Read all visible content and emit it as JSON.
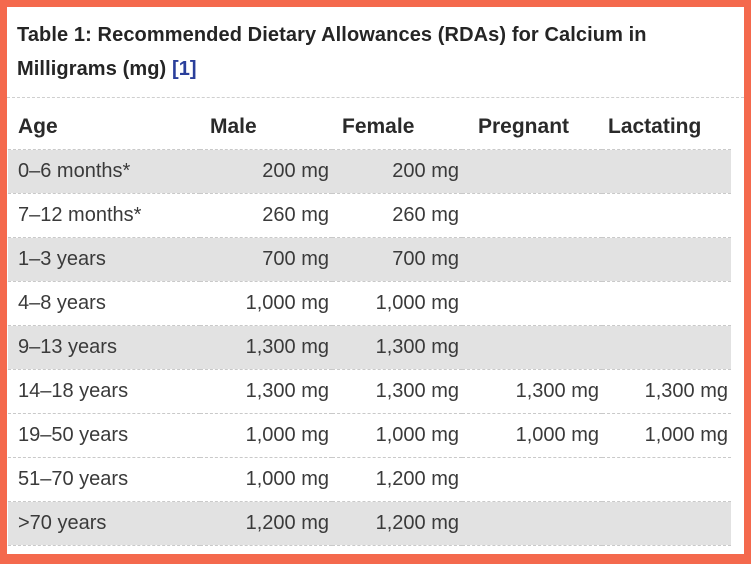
{
  "frame": {
    "border_color": "#f4694d",
    "background_color": "#ffffff"
  },
  "table": {
    "title_text": "Table 1: Recommended Dietary Allowances (RDAs) for Calcium in Milligrams (mg) ",
    "reference_label": "[1]",
    "columns": [
      "Age",
      "Male",
      "Female",
      "Pregnant",
      "Lactating"
    ],
    "rows": [
      {
        "age": "0–6 months*",
        "male": "200 mg",
        "female": "200 mg",
        "pregnant": "",
        "lactating": "",
        "shaded": true
      },
      {
        "age": "7–12 months*",
        "male": "260 mg",
        "female": "260 mg",
        "pregnant": "",
        "lactating": "",
        "shaded": false
      },
      {
        "age": "1–3 years",
        "male": "700 mg",
        "female": "700 mg",
        "pregnant": "",
        "lactating": "",
        "shaded": true
      },
      {
        "age": "4–8 years",
        "male": "1,000 mg",
        "female": "1,000 mg",
        "pregnant": "",
        "lactating": "",
        "shaded": false
      },
      {
        "age": "9–13 years",
        "male": "1,300 mg",
        "female": "1,300 mg",
        "pregnant": "",
        "lactating": "",
        "shaded": true
      },
      {
        "age": "14–18 years",
        "male": "1,300 mg",
        "female": "1,300 mg",
        "pregnant": "1,300 mg",
        "lactating": "1,300 mg",
        "shaded": false
      },
      {
        "age": "19–50 years",
        "male": "1,000 mg",
        "female": "1,000 mg",
        "pregnant": "1,000 mg",
        "lactating": "1,000 mg",
        "shaded": false
      },
      {
        "age": "51–70 years",
        "male": "1,000 mg",
        "female": "1,200 mg",
        "pregnant": "",
        "lactating": "",
        "shaded": false
      },
      {
        "age": ">70 years",
        "male": "1,200 mg",
        "female": "1,200 mg",
        "pregnant": "",
        "lactating": "",
        "shaded": true
      }
    ],
    "colors": {
      "stripe": "#e2e2e2",
      "row_divider": "#c9c9c9",
      "title_text": "#252525",
      "body_text": "#3a3a3a",
      "link": "#2a3f9b"
    }
  }
}
